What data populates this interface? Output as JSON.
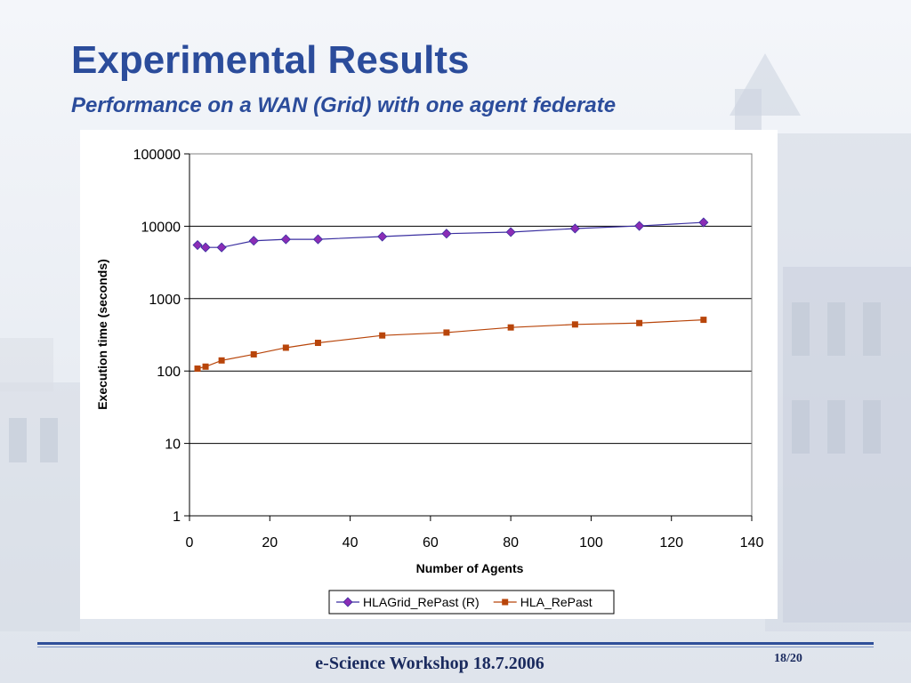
{
  "slide": {
    "title": "Experimental Results",
    "subtitle": "Performance on a WAN (Grid) with one agent federate",
    "footer": "e-Science Workshop 18.7.2006",
    "page_number": "18/20"
  },
  "colors": {
    "title": "#2b4c9b",
    "series1": "#3a2fa0",
    "series1_marker": "#8b2db5",
    "series2": "#b8450a"
  },
  "chart_data": {
    "type": "line",
    "title": "",
    "xlabel": "Number of Agents",
    "ylabel": "Execution time (seconds)",
    "xlim": [
      0,
      140
    ],
    "ylim": [
      1,
      100000
    ],
    "yscale": "log",
    "xticks": [
      "0",
      "20",
      "40",
      "60",
      "80",
      "100",
      "120",
      "140"
    ],
    "yticks": [
      "1",
      "10",
      "100",
      "1000",
      "10000",
      "100000"
    ],
    "grid": "horizontal",
    "legend_position": "bottom",
    "series": [
      {
        "name": "HLAGrid_RePast (R)",
        "marker": "diamond",
        "x": [
          2,
          4,
          8,
          16,
          24,
          32,
          48,
          64,
          80,
          96,
          112,
          128
        ],
        "y": [
          5500,
          5100,
          5100,
          6300,
          6600,
          6600,
          7200,
          7900,
          8300,
          9300,
          10100,
          11300
        ]
      },
      {
        "name": "HLA_RePast",
        "marker": "square",
        "x": [
          2,
          4,
          8,
          16,
          24,
          32,
          48,
          64,
          80,
          96,
          112,
          128
        ],
        "y": [
          108,
          115,
          140,
          170,
          210,
          245,
          310,
          340,
          400,
          440,
          460,
          510
        ]
      }
    ]
  }
}
